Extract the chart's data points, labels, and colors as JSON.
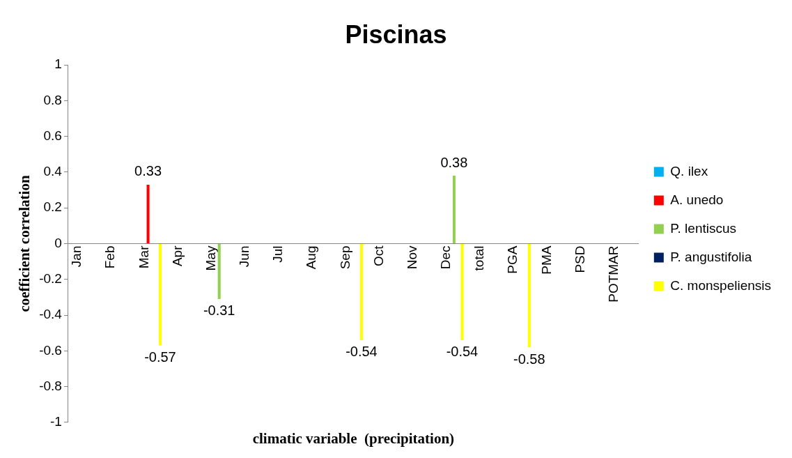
{
  "chart_data": {
    "type": "bar",
    "title": "Piscinas",
    "xlabel": "climatic variable  (precipitation)",
    "ylabel": "coefficient correlation",
    "categories": [
      "Jan",
      "Feb",
      "Mar",
      "Apr",
      "May",
      "Jun",
      "Jul",
      "Aug",
      "Sep",
      "Oct",
      "Nov",
      "Dec",
      "total",
      "PGA",
      "PMA",
      "PSD",
      "POTMAR"
    ],
    "series": [
      {
        "name": "Q. ilex",
        "color": "#00b0f0",
        "values": [
          null,
          null,
          null,
          null,
          null,
          null,
          null,
          null,
          null,
          null,
          null,
          null,
          null,
          null,
          null,
          null,
          null
        ]
      },
      {
        "name": "A. unedo",
        "color": "#ff0000",
        "values": [
          null,
          null,
          0.33,
          null,
          null,
          null,
          null,
          null,
          null,
          null,
          null,
          null,
          null,
          null,
          null,
          null,
          null
        ]
      },
      {
        "name": "P. lentiscus",
        "color": "#92d050",
        "values": [
          null,
          null,
          null,
          null,
          -0.31,
          null,
          null,
          null,
          null,
          null,
          null,
          0.38,
          null,
          null,
          null,
          null,
          null
        ]
      },
      {
        "name": "P. angustifolia",
        "color": "#002060",
        "values": [
          null,
          null,
          null,
          null,
          null,
          null,
          null,
          null,
          null,
          null,
          null,
          null,
          null,
          null,
          null,
          null,
          null
        ]
      },
      {
        "name": "C. monspeliensis",
        "color": "#ffff00",
        "values": [
          null,
          null,
          -0.57,
          null,
          null,
          null,
          null,
          null,
          -0.54,
          null,
          null,
          -0.54,
          null,
          -0.58,
          null,
          null,
          null
        ]
      }
    ],
    "ylim": [
      -1,
      1
    ],
    "yticks": [
      -1,
      -0.8,
      -0.6,
      -0.4,
      -0.2,
      0,
      0.2,
      0.4,
      0.6,
      0.8,
      1
    ],
    "grid": false,
    "legend": "right",
    "data_labels": true
  }
}
